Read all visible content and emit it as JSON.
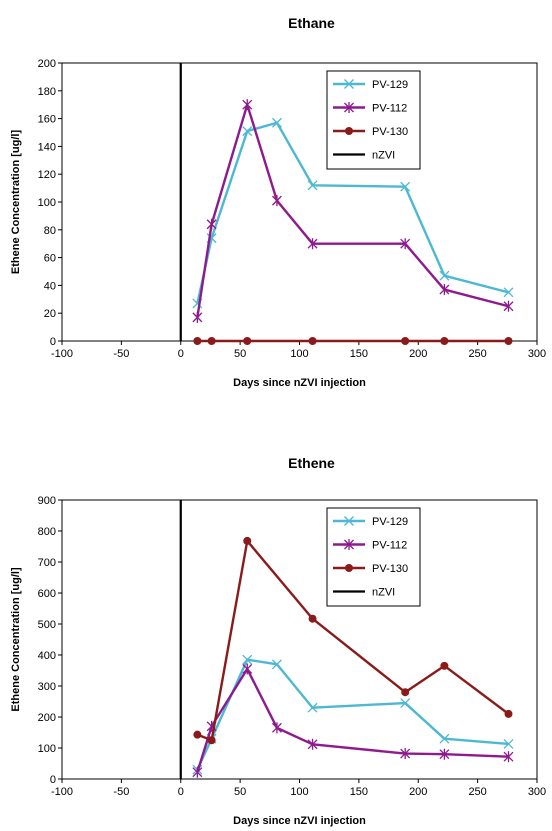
{
  "chart_data": [
    {
      "type": "line",
      "title": "Ethane",
      "xlabel": "Days since nZVI injection",
      "ylabel": "Ethene Concentration [ug/l]",
      "xlim": [
        -100,
        300
      ],
      "ylim": [
        0,
        200
      ],
      "xticks": [
        -100,
        -50,
        0,
        50,
        100,
        150,
        200,
        250,
        300
      ],
      "yticks": [
        0,
        20,
        40,
        60,
        80,
        100,
        120,
        140,
        160,
        180,
        200
      ],
      "legend_position": "top-right",
      "series": [
        {
          "name": "PV-129",
          "color": "#4db8d4",
          "marker": "x",
          "x": [
            14,
            26,
            56,
            81,
            111,
            189,
            222,
            276
          ],
          "y": [
            27,
            74,
            151,
            157,
            112,
            111,
            47,
            35
          ]
        },
        {
          "name": "PV-112",
          "color": "#8e1a8e",
          "marker": "asterisk",
          "x": [
            14,
            26,
            56,
            81,
            111,
            189,
            222,
            276
          ],
          "y": [
            17,
            84,
            170,
            101,
            70,
            70,
            37,
            25
          ]
        },
        {
          "name": "PV-130",
          "color": "#8b1a1a",
          "marker": "dot",
          "x": [
            14,
            26,
            56,
            111,
            189,
            222,
            276
          ],
          "y": [
            0,
            0,
            0,
            0,
            0,
            0,
            0
          ]
        },
        {
          "name": "nZVI",
          "color": "#000000",
          "marker": "none",
          "vline": 0
        }
      ]
    },
    {
      "type": "line",
      "title": "Ethene",
      "xlabel": "Days since nZVI injection",
      "ylabel": "Ethene Concentration [ug/l]",
      "xlim": [
        -100,
        300
      ],
      "ylim": [
        0,
        900
      ],
      "xticks": [
        -100,
        -50,
        0,
        50,
        100,
        150,
        200,
        250,
        300
      ],
      "yticks": [
        0,
        100,
        200,
        300,
        400,
        500,
        600,
        700,
        800,
        900
      ],
      "legend_position": "top-right",
      "series": [
        {
          "name": "PV-129",
          "color": "#4db8d4",
          "marker": "x",
          "x": [
            14,
            26,
            56,
            81,
            111,
            189,
            222,
            276
          ],
          "y": [
            30,
            130,
            385,
            370,
            230,
            245,
            130,
            113
          ]
        },
        {
          "name": "PV-112",
          "color": "#8e1a8e",
          "marker": "asterisk",
          "x": [
            14,
            26,
            56,
            81,
            111,
            189,
            222,
            276
          ],
          "y": [
            22,
            170,
            355,
            165,
            112,
            82,
            80,
            72
          ]
        },
        {
          "name": "PV-130",
          "color": "#8b1a1a",
          "marker": "dot",
          "x": [
            14,
            26,
            56,
            111,
            189,
            222,
            276
          ],
          "y": [
            143,
            125,
            768,
            517,
            280,
            365,
            210
          ]
        },
        {
          "name": "nZVI",
          "color": "#000000",
          "marker": "none",
          "vline": 0
        }
      ]
    }
  ]
}
